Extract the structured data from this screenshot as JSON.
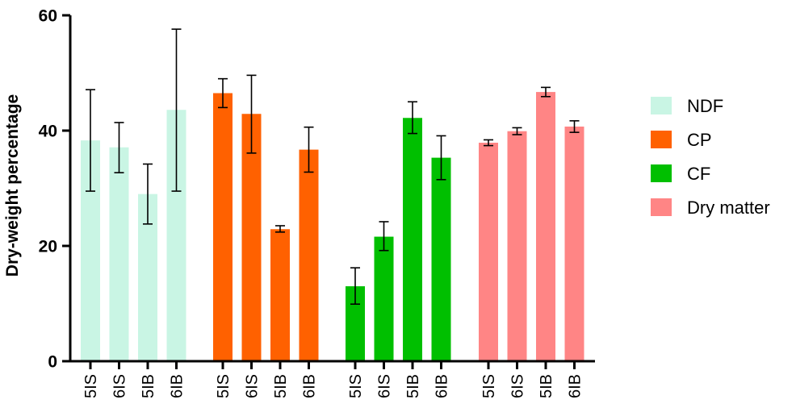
{
  "chart_data": {
    "type": "bar",
    "ylabel": "Dry-weight percentage",
    "xlabel": "",
    "ylim": [
      0,
      60
    ],
    "yticks": [
      0,
      20,
      40,
      60
    ],
    "legend_position": "right",
    "categories": [
      "5IS",
      "6IS",
      "5IB",
      "6IB"
    ],
    "series": [
      {
        "name": "NDF",
        "color": "#c9f5e4",
        "values": [
          38.3,
          37.1,
          29.0,
          43.6
        ],
        "error": [
          [
            29.5,
            47.1
          ],
          [
            32.7,
            41.4
          ],
          [
            23.8,
            34.2
          ],
          [
            29.5,
            57.6
          ]
        ]
      },
      {
        "name": "CP",
        "color": "#ff6100",
        "values": [
          46.5,
          42.9,
          22.9,
          36.7
        ],
        "error": [
          [
            44.0,
            49.0
          ],
          [
            36.1,
            49.6
          ],
          [
            22.4,
            23.5
          ],
          [
            32.8,
            40.6
          ]
        ]
      },
      {
        "name": "CF",
        "color": "#00bf00",
        "values": [
          13.0,
          21.6,
          42.2,
          35.3
        ],
        "error": [
          [
            9.9,
            16.2
          ],
          [
            19.2,
            24.2
          ],
          [
            39.5,
            45.0
          ],
          [
            31.5,
            39.1
          ]
        ]
      },
      {
        "name": "Dry matter",
        "color": "#ff8585",
        "values": [
          37.9,
          39.9,
          46.7,
          40.7
        ],
        "error": [
          [
            37.4,
            38.4
          ],
          [
            39.3,
            40.5
          ],
          [
            45.9,
            47.5
          ],
          [
            39.7,
            41.7
          ]
        ]
      }
    ]
  }
}
